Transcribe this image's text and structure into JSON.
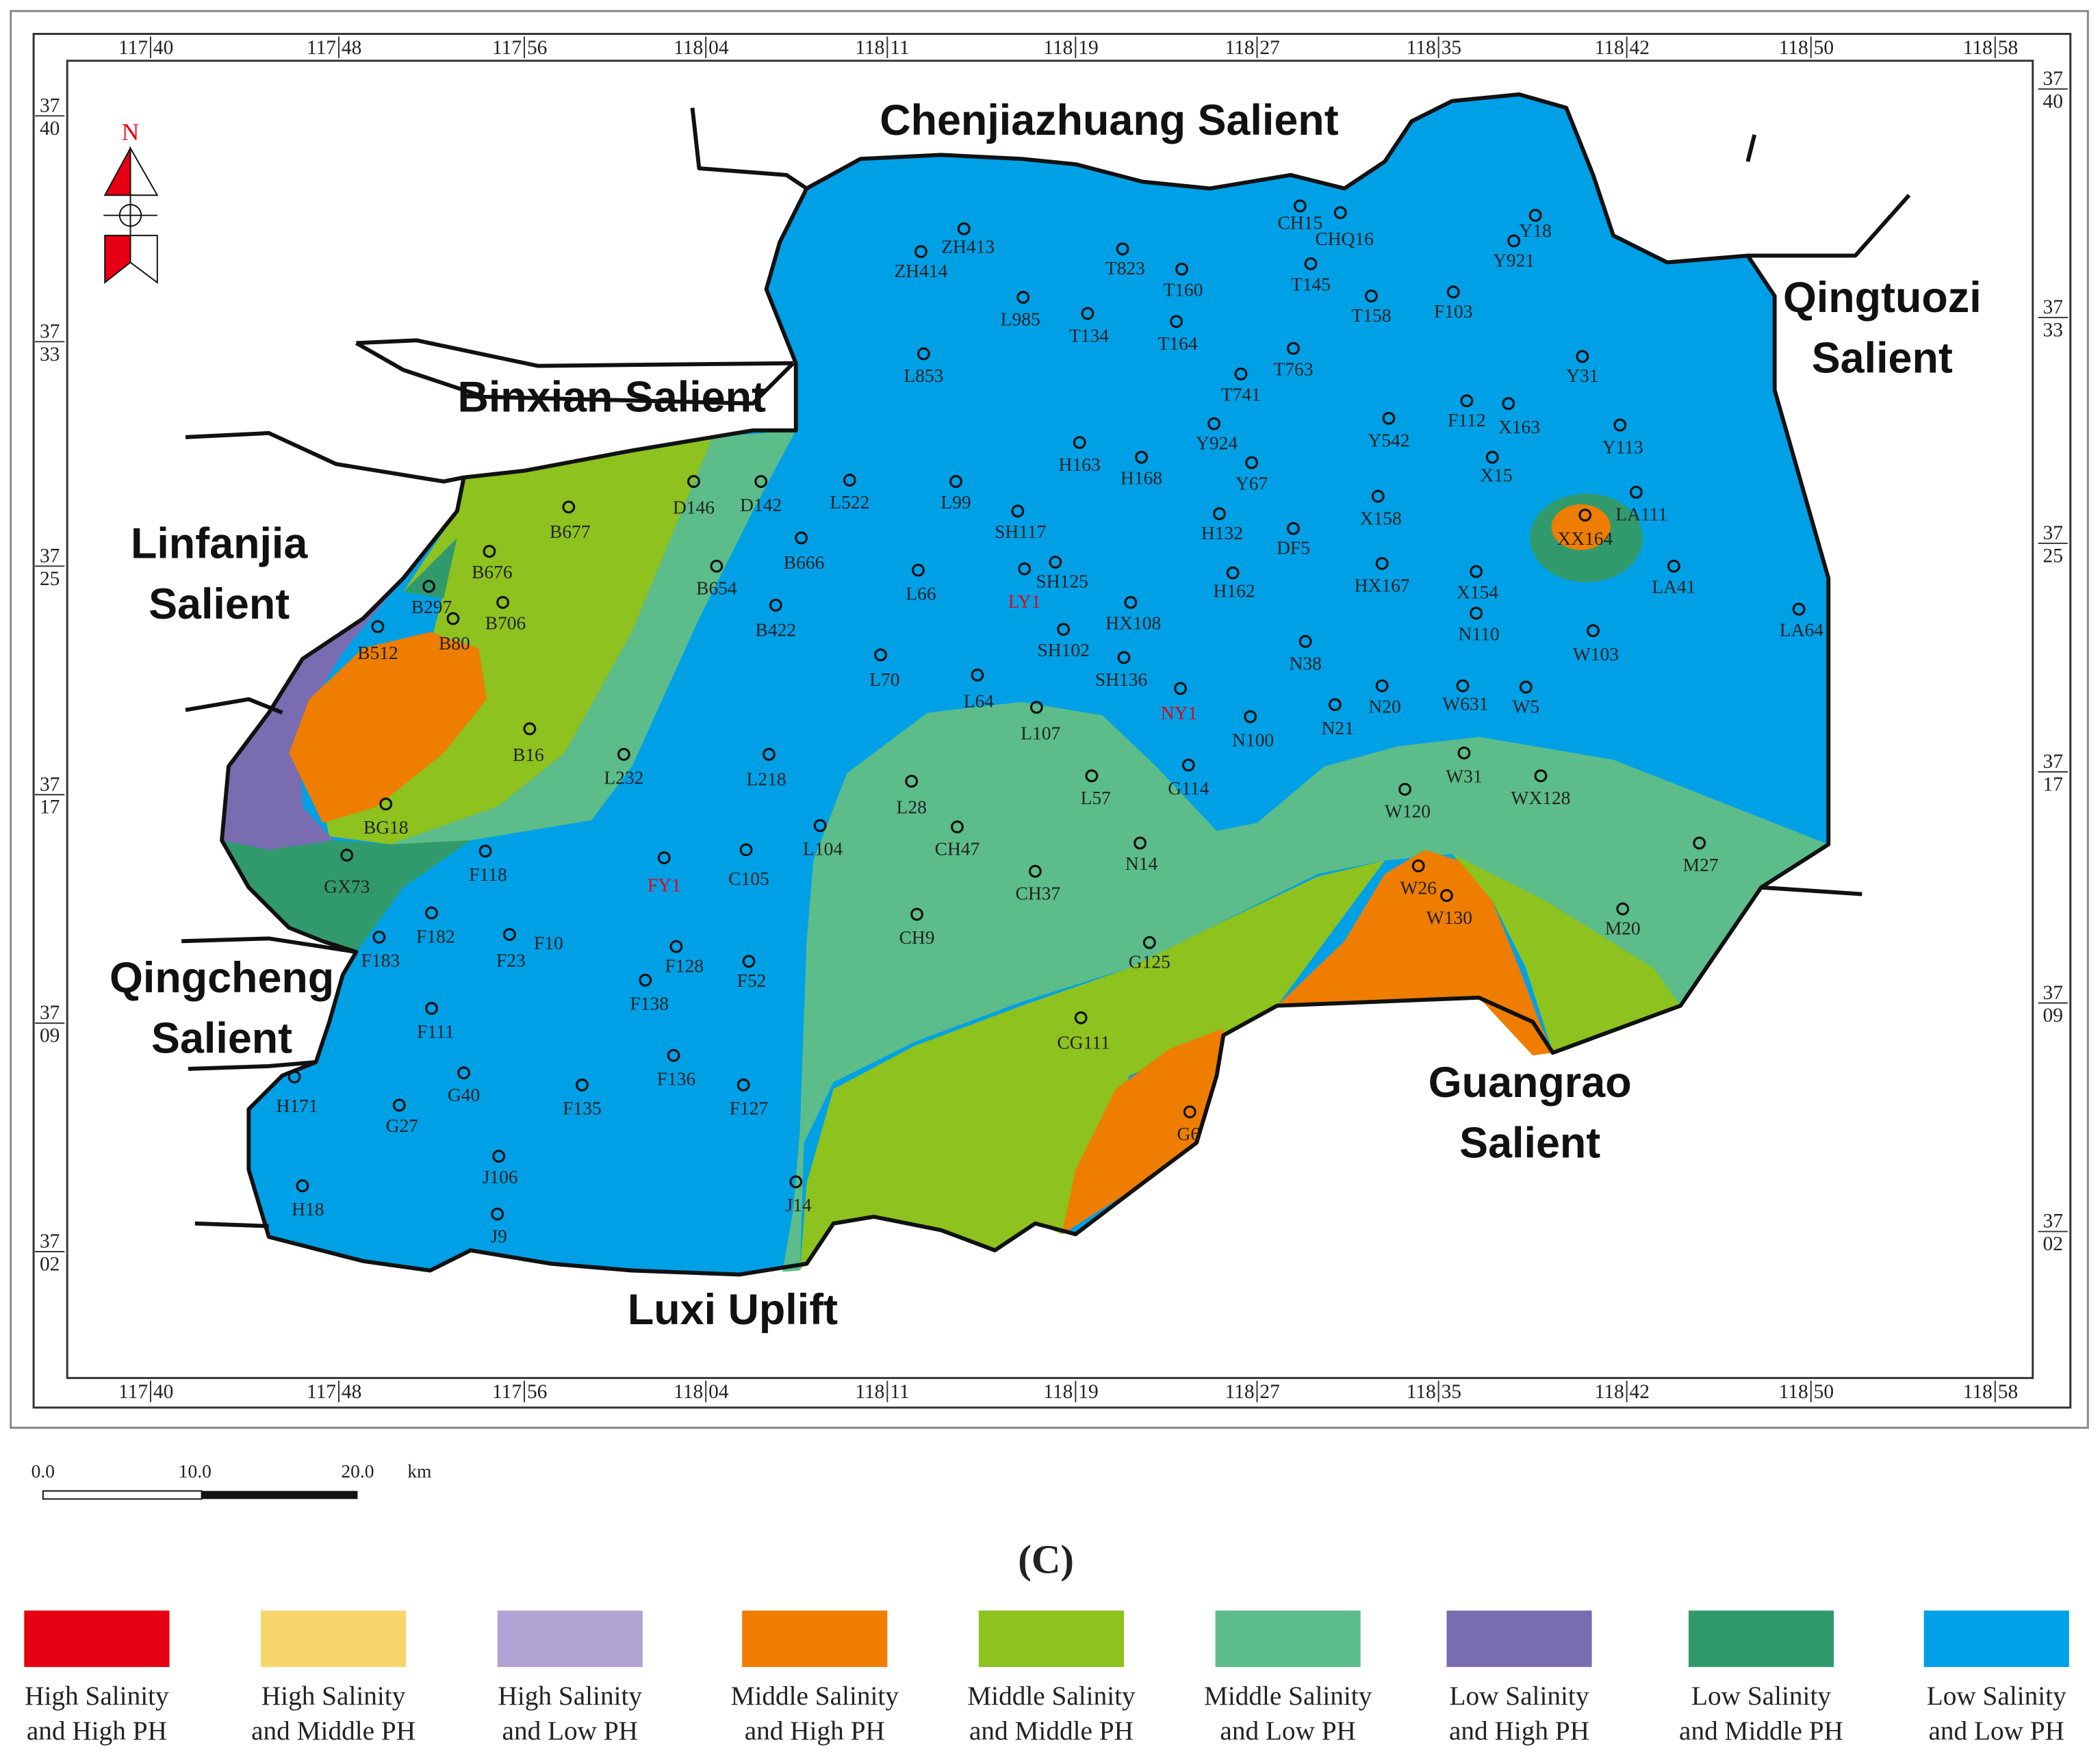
{
  "caption": "(C)",
  "north_label": "N",
  "longitude_labels": [
    {
      "deg": "117",
      "min": "40"
    },
    {
      "deg": "117",
      "min": "48"
    },
    {
      "deg": "117",
      "min": "56"
    },
    {
      "deg": "118",
      "min": "04"
    },
    {
      "deg": "118",
      "min": "11"
    },
    {
      "deg": "118",
      "min": "19"
    },
    {
      "deg": "118",
      "min": "27"
    },
    {
      "deg": "118",
      "min": "35"
    },
    {
      "deg": "118",
      "min": "42"
    },
    {
      "deg": "118",
      "min": "50"
    },
    {
      "deg": "118",
      "min": "58"
    }
  ],
  "latitude_labels": [
    {
      "deg": "37",
      "min": "40"
    },
    {
      "deg": "37",
      "min": "33"
    },
    {
      "deg": "37",
      "min": "25"
    },
    {
      "deg": "37",
      "min": "17"
    },
    {
      "deg": "37",
      "min": "09"
    },
    {
      "deg": "37",
      "min": "02"
    }
  ],
  "regions": [
    {
      "lines": [
        "Chenjiazhuang  Salient"
      ]
    },
    {
      "lines": [
        "Binxian Salient"
      ]
    },
    {
      "lines": [
        "Qingtuozi",
        "Salient"
      ]
    },
    {
      "lines": [
        "Linfanjia",
        "Salient"
      ]
    },
    {
      "lines": [
        "Qingcheng",
        "Salient"
      ]
    },
    {
      "lines": [
        "Guangrao",
        "Salient"
      ]
    },
    {
      "lines": [
        "Luxi  Uplift"
      ]
    }
  ],
  "wells": [
    "ZH413",
    "ZH414",
    "T823",
    "T160",
    "CH15",
    "CHQ16",
    "T145",
    "Y18",
    "Y921",
    "T158",
    "F103",
    "L985",
    "T134",
    "T164",
    "L853",
    "T763",
    "Y31",
    "T741",
    "F112",
    "X163",
    "Y542",
    "Y113",
    "Y924",
    "H163",
    "H168",
    "Y67",
    "X15",
    "D146",
    "D142",
    "L522",
    "L99",
    "B677",
    "SH117",
    "LA111",
    "X158",
    "H132",
    "XX164",
    "DF5",
    "B666",
    "B676",
    "SH125",
    "LY1",
    "L66",
    "B654",
    "H162",
    "HX167",
    "X154",
    "LA41",
    "B297",
    "B706",
    "B422",
    "HX108",
    "N110",
    "LA64",
    "B512",
    "B80",
    "SH102",
    "W103",
    "L70",
    "N38",
    "SH136",
    "L64",
    "NY1",
    "N20",
    "W631",
    "W5",
    "L107",
    "N21",
    "N100",
    "B16",
    "L232",
    "L218",
    "W31",
    "L28",
    "L57",
    "G114",
    "W120",
    "WX128",
    "BG18",
    "L104",
    "CH47",
    "GX73",
    "F118",
    "FY1",
    "C105",
    "N14",
    "M27",
    "CH37",
    "W26",
    "W130",
    "CH9",
    "F182",
    "M20",
    "F183",
    "F23",
    "F10",
    "F128",
    "G125",
    "F52",
    "F138",
    "F111",
    "CG111",
    "F136",
    "H171",
    "G40",
    "F135",
    "F127",
    "G27",
    "G6",
    "J106",
    "J14",
    "H18",
    "J9"
  ],
  "scale_bar": {
    "ticks": [
      "0.0",
      "10.0",
      "20.0"
    ],
    "unit": "km"
  },
  "legend": [
    {
      "line1": "High Salinity",
      "line2": "and High PH",
      "color": "#e60012"
    },
    {
      "line1": "High Salinity",
      "line2": "and Middle PH",
      "color": "#f9d56e"
    },
    {
      "line1": "High Salinity",
      "line2": "and Low PH",
      "color": "#b1a3d3"
    },
    {
      "line1": "Middle Salinity",
      "line2": "and High PH",
      "color": "#ee7d00"
    },
    {
      "line1": "Middle Salinity",
      "line2": "and Middle PH",
      "color": "#8dc21f"
    },
    {
      "line1": "Middle Salinity",
      "line2": "and Low PH",
      "color": "#5cbd8a"
    },
    {
      "line1": "Low Salinity",
      "line2": "and High PH",
      "color": "#7a6cb0"
    },
    {
      "line1": "Low Salinity",
      "line2": "and Middle PH",
      "color": "#319a6c"
    },
    {
      "line1": "Low Salinity",
      "line2": "and Low PH",
      "color": "#00a0e6"
    }
  ]
}
